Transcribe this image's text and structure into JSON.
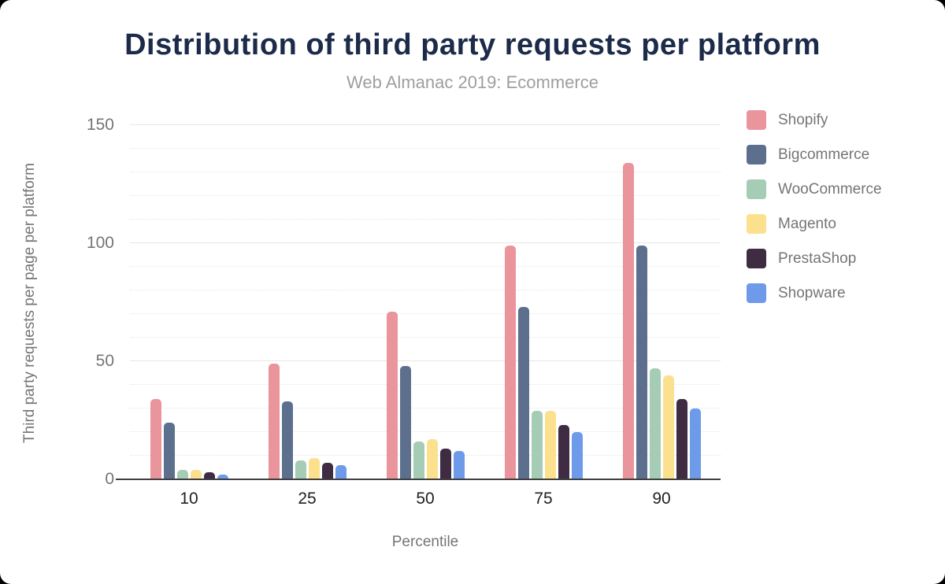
{
  "page": {
    "background_color": "#000000",
    "card_color": "#ffffff"
  },
  "header": {
    "title": "Distribution of third party requests per platform",
    "subtitle": "Web Almanac 2019: Ecommerce",
    "title_color": "#1c2b4a",
    "subtitle_color": "#9e9e9e"
  },
  "chart_data": {
    "type": "bar",
    "title": "Distribution of third party requests per platform",
    "subtitle": "Web Almanac 2019: Ecommerce",
    "xlabel": "Percentile",
    "ylabel": "Third party requests per page per platform",
    "categories": [
      "10",
      "25",
      "50",
      "75",
      "90"
    ],
    "series": [
      {
        "name": "Shopify",
        "color": "#ea949b",
        "values": [
          34,
          49,
          71,
          99,
          134
        ]
      },
      {
        "name": "Bigcommerce",
        "color": "#5c708e",
        "values": [
          24,
          33,
          48,
          73,
          99
        ]
      },
      {
        "name": "WooCommerce",
        "color": "#a5ccb4",
        "values": [
          4,
          8,
          16,
          29,
          47
        ]
      },
      {
        "name": "Magento",
        "color": "#fbe18e",
        "values": [
          4,
          9,
          17,
          29,
          44
        ]
      },
      {
        "name": "PrestaShop",
        "color": "#3f2b42",
        "values": [
          3,
          7,
          13,
          23,
          34
        ]
      },
      {
        "name": "Shopware",
        "color": "#6d9ae9",
        "values": [
          2,
          6,
          12,
          20,
          30
        ]
      }
    ],
    "ylim": [
      0,
      150
    ],
    "yticks": [
      0,
      50,
      100,
      150
    ],
    "grid": true,
    "grid_interval": 10,
    "legend_position": "right",
    "axis_line_color": "#404040",
    "gridline_color": "#e7e7e7",
    "tick_label_color": "#757575",
    "category_label_color": "#212121"
  }
}
